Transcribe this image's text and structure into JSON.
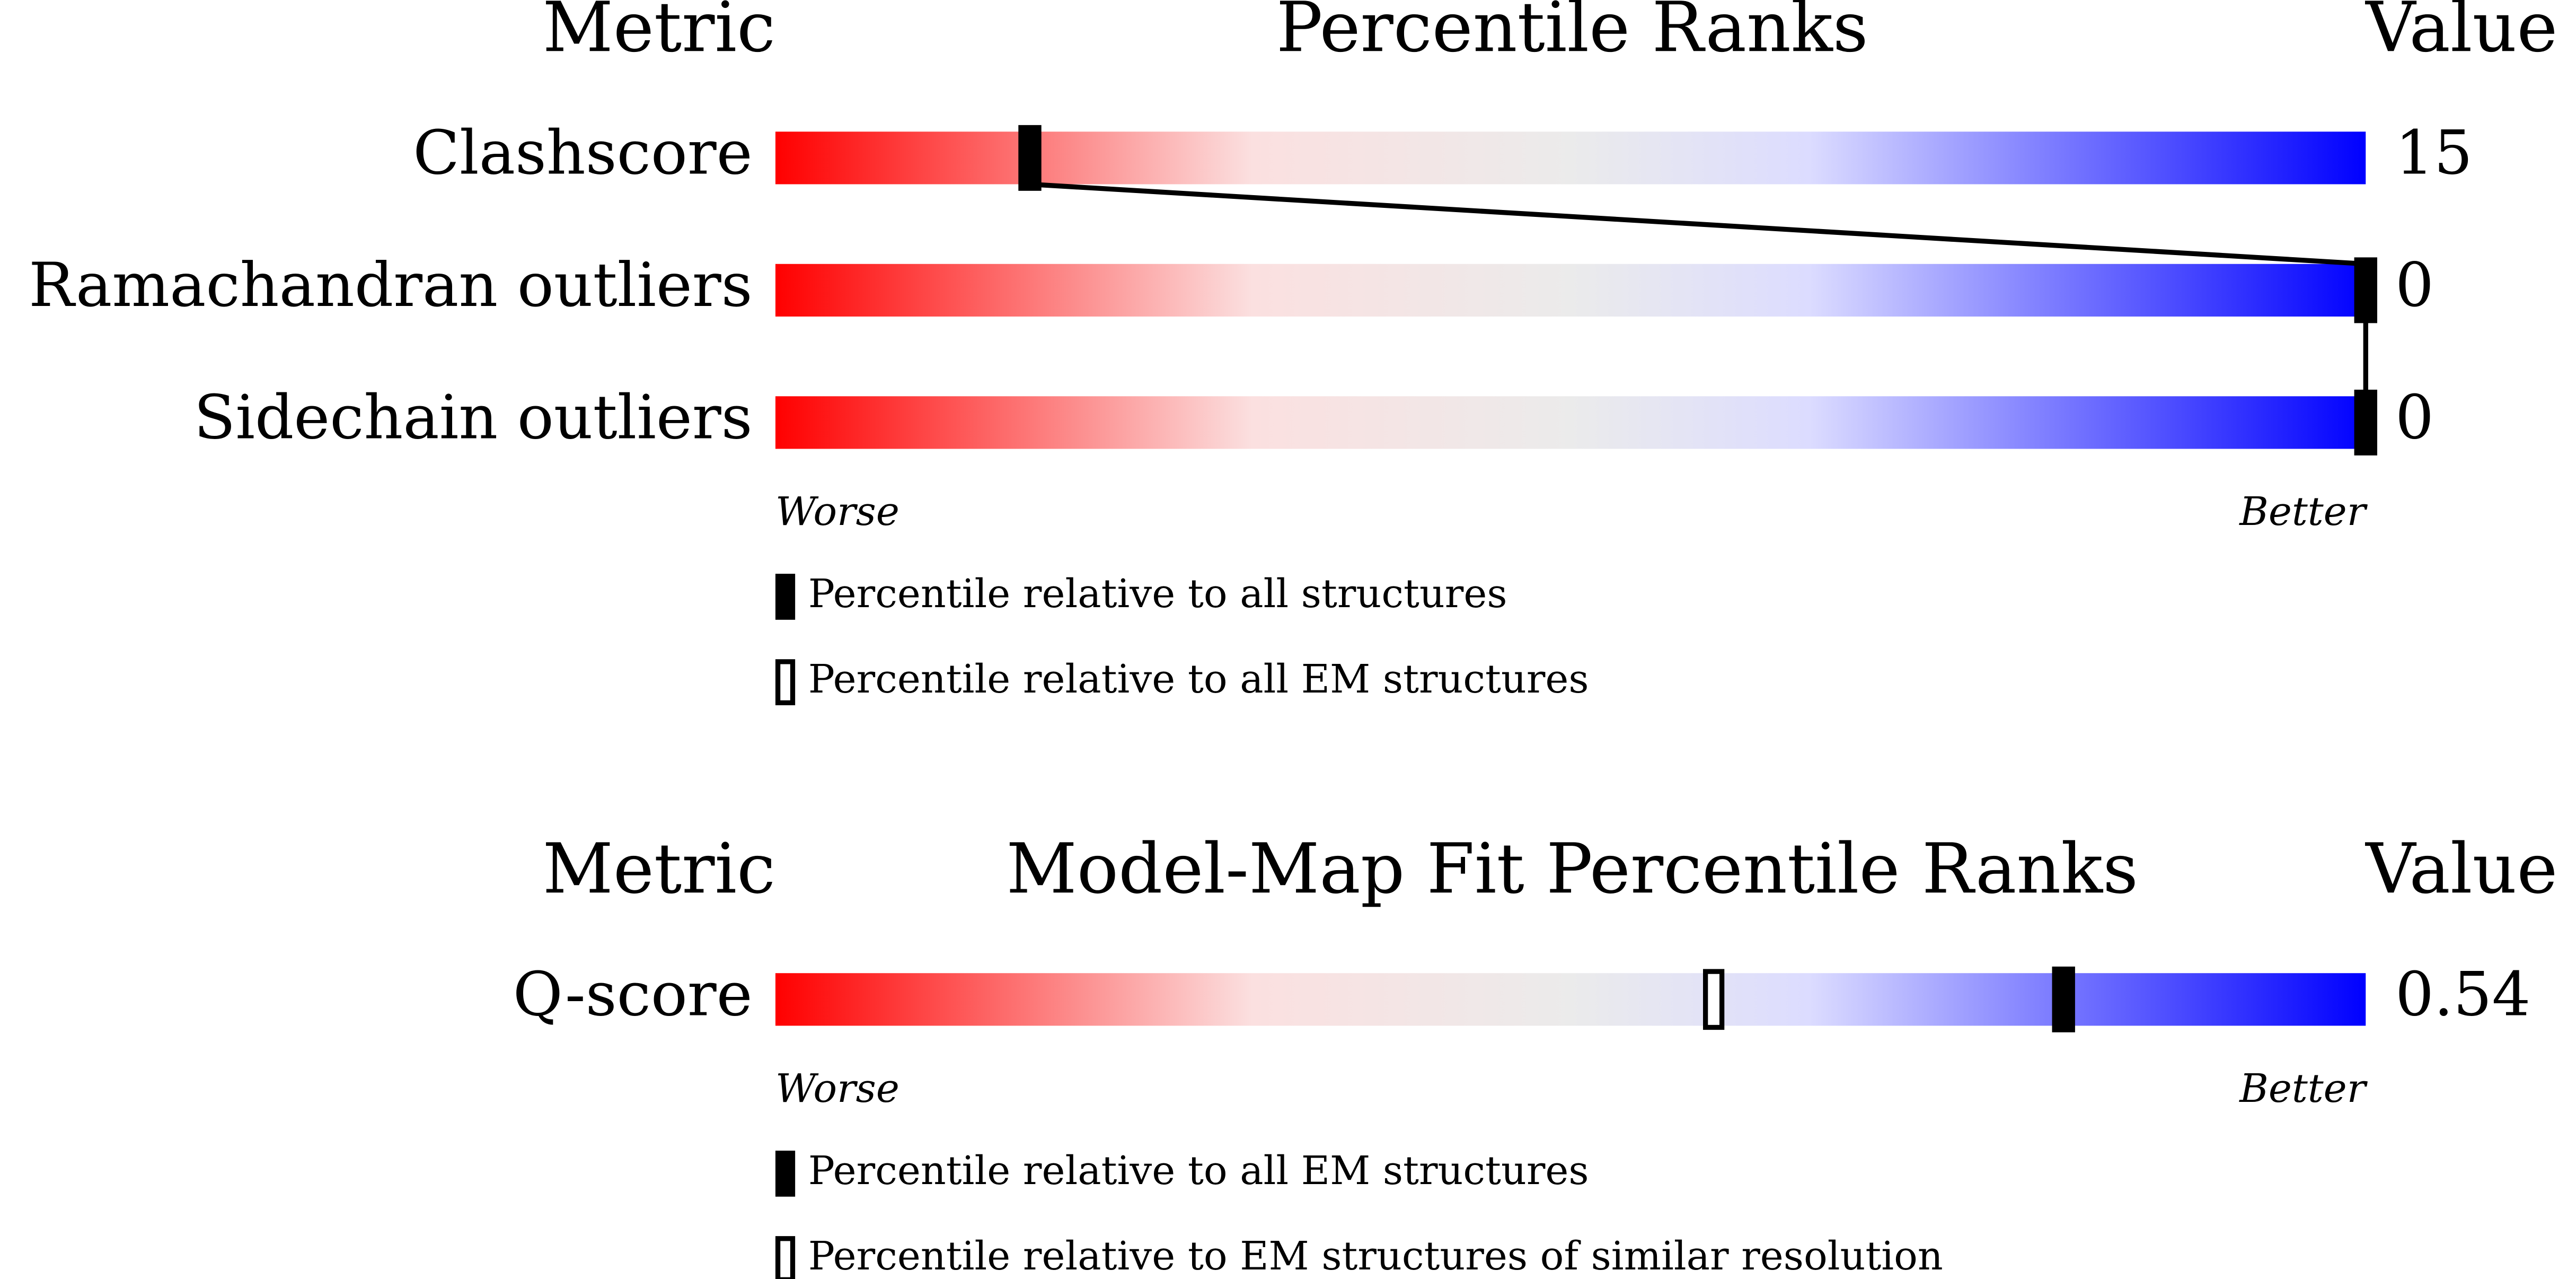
{
  "chart_data": [
    {
      "type": "slider",
      "title": "Percentile Ranks",
      "metric_header": "Metric",
      "value_header": "Value",
      "categories": [
        "Clashscore",
        "Ramachandran outliers",
        "Sidechain outliers"
      ],
      "values": [
        15,
        0,
        0
      ],
      "xlim": [
        0,
        100
      ],
      "worse_label": "Worse",
      "better_label": "Better",
      "connect": true,
      "series": [
        {
          "name": "Percentile relative to all structures",
          "marker": "filled",
          "color": "#000000",
          "values": [
            16,
            100,
            100
          ]
        },
        {
          "name": "Percentile relative to all EM structures",
          "marker": "open",
          "color": "#000000",
          "values": [
            null,
            null,
            null
          ]
        }
      ]
    },
    {
      "type": "slider",
      "title": "Model-Map Fit Percentile Ranks",
      "metric_header": "Metric",
      "value_header": "Value",
      "categories": [
        "Q-score"
      ],
      "values": [
        0.54
      ],
      "xlim": [
        0,
        100
      ],
      "worse_label": "Worse",
      "better_label": "Better",
      "connect": false,
      "series": [
        {
          "name": "Percentile relative to all EM structures",
          "marker": "filled",
          "color": "#000000",
          "values": [
            81
          ]
        },
        {
          "name": "Percentile relative to EM structures of similar resolution",
          "marker": "open",
          "color": "#000000",
          "values": [
            59
          ]
        }
      ]
    }
  ]
}
